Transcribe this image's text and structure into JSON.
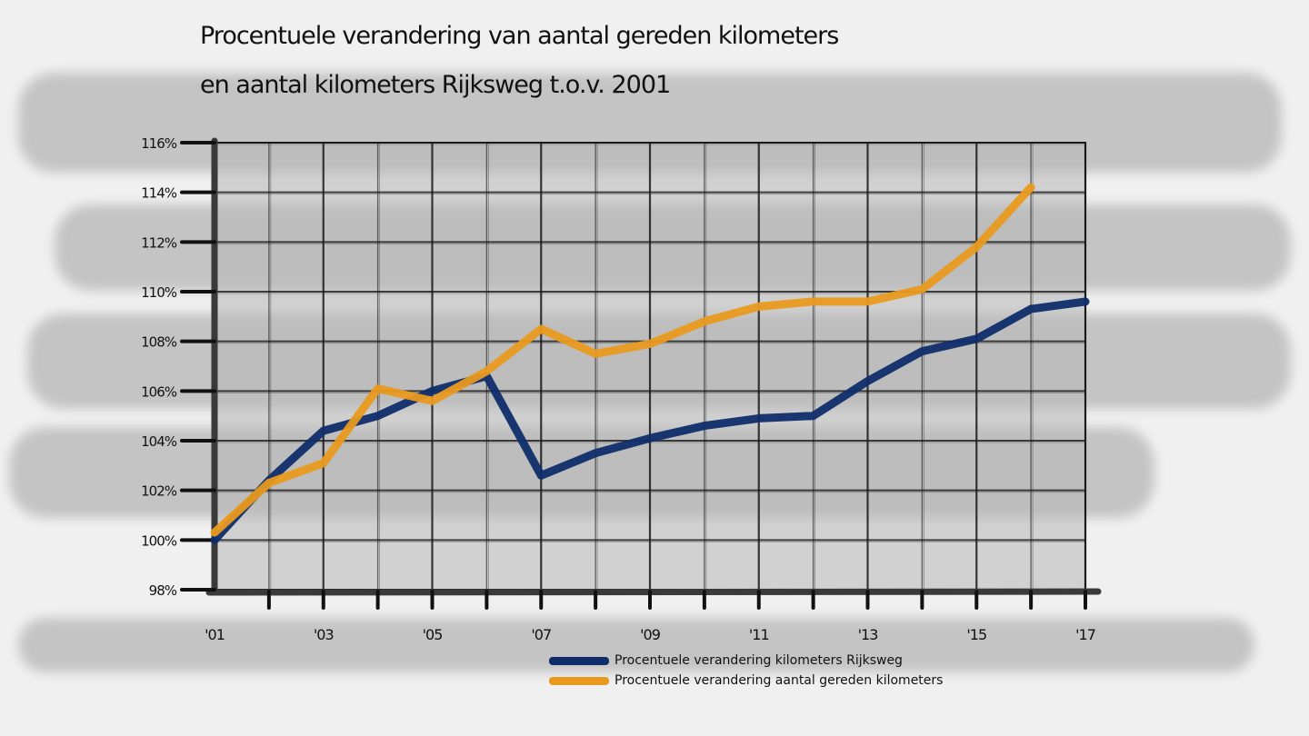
{
  "title": {
    "line1": "Procentuele verandering van aantal gereden kilometers",
    "line2": "en aantal kilometers Rijksweg t.o.v. 2001"
  },
  "colors": {
    "series_blue": "#0f2d6b",
    "series_orange": "#e89a1e",
    "axis": "#3a3a3a",
    "grid": "#1a1a1a",
    "plot_bg": "#b8b8b8"
  },
  "chart_data": {
    "type": "line",
    "title": "Procentuele verandering van aantal gereden kilometers en aantal kilometers Rijksweg t.o.v. 2001",
    "xlabel": "",
    "ylabel": "",
    "x": [
      2001,
      2002,
      2003,
      2004,
      2005,
      2006,
      2007,
      2008,
      2009,
      2010,
      2011,
      2012,
      2013,
      2014,
      2015,
      2016,
      2017
    ],
    "xlim": [
      2001,
      2017
    ],
    "ylim": [
      98,
      116
    ],
    "x_tick_labels": [
      "'01",
      "'03",
      "'05",
      "'07",
      "'09",
      "'11",
      "'13",
      "'15",
      "'17"
    ],
    "x_tick_values": [
      2001,
      2003,
      2005,
      2007,
      2009,
      2011,
      2013,
      2015,
      2017
    ],
    "y_tick_labels": [
      "98%",
      "100%",
      "102%",
      "104%",
      "106%",
      "108%",
      "110%",
      "112%",
      "114%",
      "116%"
    ],
    "y_tick_values": [
      98,
      100,
      102,
      104,
      106,
      108,
      110,
      112,
      114,
      116
    ],
    "grid": true,
    "legend_position": "bottom-center",
    "series": [
      {
        "name": "Procentuele verandering kilometers Rijksweg",
        "color": "#0f2d6b",
        "values": [
          100.0,
          102.4,
          104.4,
          105.0,
          106.0,
          106.6,
          102.6,
          103.5,
          104.1,
          104.6,
          104.9,
          105.0,
          106.4,
          107.6,
          108.1,
          109.3,
          109.6
        ]
      },
      {
        "name": "Procentuele verandering aantal gereden kilometers",
        "color": "#e89a1e",
        "values": [
          100.3,
          102.3,
          103.1,
          106.1,
          105.6,
          106.8,
          108.5,
          107.5,
          107.9,
          108.8,
          109.4,
          109.6,
          109.6,
          110.1,
          111.8,
          114.2,
          null
        ]
      }
    ]
  }
}
